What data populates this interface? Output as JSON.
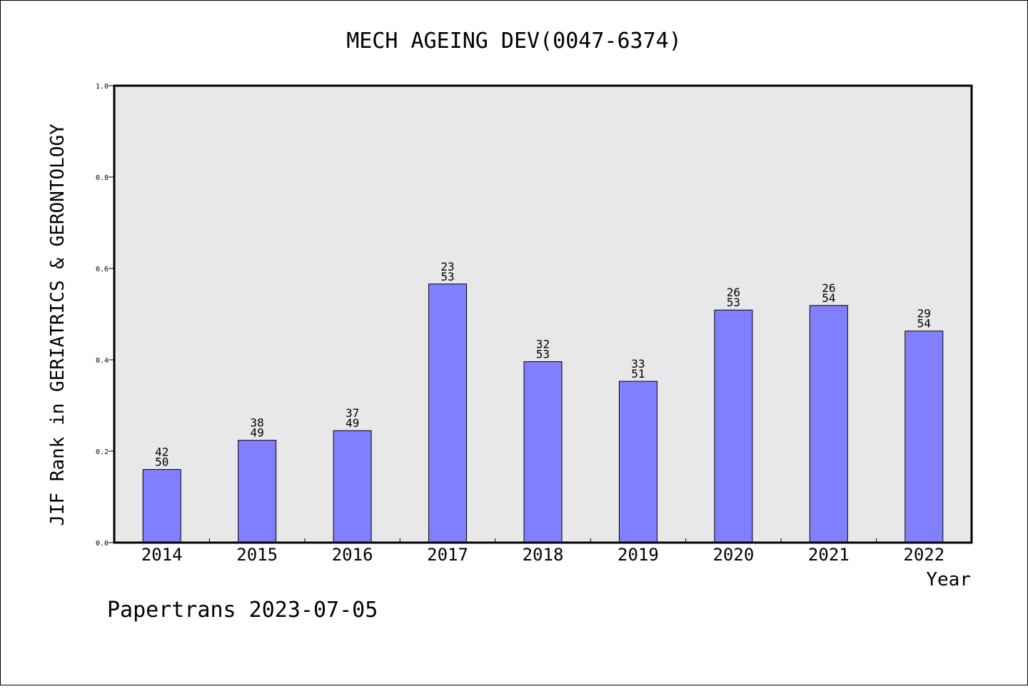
{
  "chart_data": {
    "type": "bar",
    "title": "MECH AGEING DEV(0047-6374)",
    "xlabel": "Year",
    "ylabel": "JIF Rank in GERIATRICS & GERONTOLOGY",
    "categories": [
      "2014",
      "2015",
      "2016",
      "2017",
      "2018",
      "2019",
      "2020",
      "2021",
      "2022"
    ],
    "values": [
      0.16,
      0.224,
      0.245,
      0.566,
      0.396,
      0.353,
      0.509,
      0.519,
      0.463
    ],
    "rank_labels": [
      {
        "rank": "42",
        "total": "50"
      },
      {
        "rank": "38",
        "total": "49"
      },
      {
        "rank": "37",
        "total": "49"
      },
      {
        "rank": "23",
        "total": "53"
      },
      {
        "rank": "32",
        "total": "53"
      },
      {
        "rank": "33",
        "total": "51"
      },
      {
        "rank": "26",
        "total": "53"
      },
      {
        "rank": "26",
        "total": "54"
      },
      {
        "rank": "29",
        "total": "54"
      }
    ],
    "ylim": [
      0,
      1.0
    ],
    "yticks": [
      "0.0",
      "0.2",
      "0.4",
      "0.6",
      "0.8",
      "1.0"
    ],
    "grid": false,
    "legend": "none"
  },
  "footer": {
    "credit": "Papertrans 2023-07-05"
  },
  "colors": {
    "bar_fill": "#8080ff",
    "plot_background": "#e8e8e8",
    "frame": "#000000"
  }
}
